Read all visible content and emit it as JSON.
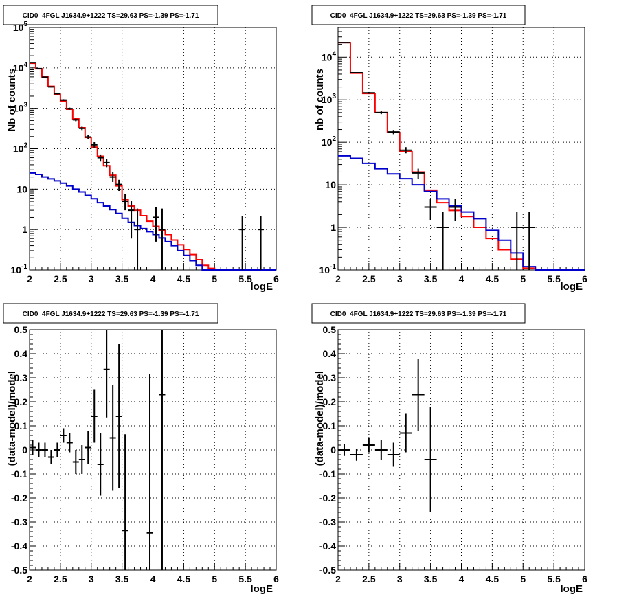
{
  "chart_data": [
    {
      "type": "line",
      "title": "CID0_4FGL J1634.9+1222 TS=29.63 PS=-1.39 PS=-1.71",
      "xlabel": "logE",
      "ylabel": "Nb of counts",
      "xlim": [
        2,
        6
      ],
      "ylim": [
        0.1,
        100000
      ],
      "yscale": "log",
      "grid": true,
      "x_ticks": [
        "2",
        "2.5",
        "3",
        "3.5",
        "4",
        "4.5",
        "5",
        "5.5",
        "6"
      ],
      "y_ticks": [
        "10^{-1}",
        "1",
        "10",
        "10^{2}",
        "10^{3}",
        "10^{4}",
        "10^{5}"
      ],
      "series": [
        {
          "color": "#ff0000",
          "style": "step",
          "bin_edges": [
            2,
            2.1,
            2.2,
            2.3,
            2.4,
            2.5,
            2.6,
            2.7,
            2.8,
            2.9,
            3.0,
            3.1,
            3.2,
            3.3,
            3.4,
            3.5,
            3.6,
            3.7,
            3.8,
            3.9,
            4.0,
            4.1,
            4.2,
            4.3,
            4.4,
            4.5,
            4.6,
            4.7,
            4.8,
            4.9,
            5.0,
            6.0
          ],
          "values": [
            13000,
            9500,
            6000,
            3500,
            2200,
            1500,
            950,
            550,
            330,
            190,
            110,
            65,
            38,
            22,
            12,
            5.5,
            3.8,
            3.0,
            2.2,
            1.6,
            1.2,
            0.95,
            0.75,
            0.55,
            0.42,
            0.32,
            0.24,
            0.18,
            0.13,
            0.11,
            0.1
          ]
        },
        {
          "color": "#0000cc",
          "style": "step",
          "bin_edges": [
            2,
            2.1,
            2.2,
            2.3,
            2.4,
            2.5,
            2.6,
            2.7,
            2.8,
            2.9,
            3.0,
            3.1,
            3.2,
            3.3,
            3.4,
            3.5,
            3.6,
            3.7,
            3.8,
            3.9,
            4.0,
            4.1,
            4.2,
            4.3,
            4.4,
            4.5,
            4.6,
            4.7,
            4.8,
            4.9,
            5.0,
            6.0
          ],
          "values": [
            25,
            23,
            20,
            18,
            16,
            14,
            12,
            10,
            8.5,
            7,
            5.8,
            4.6,
            3.8,
            3.1,
            2.5,
            1.9,
            1.5,
            1.25,
            1.05,
            0.88,
            0.75,
            0.62,
            0.5,
            0.4,
            0.3,
            0.23,
            0.17,
            0.13,
            0.1,
            0.1,
            0.1
          ]
        },
        {
          "color": "#000000",
          "style": "errorbar",
          "points": [
            {
              "x": 2.05,
              "y": 13500,
              "xerr": 0.05,
              "ylo": 13300,
              "yhi": 13700
            },
            {
              "x": 2.15,
              "y": 9600,
              "xerr": 0.05,
              "ylo": 9400,
              "yhi": 9800
            },
            {
              "x": 2.25,
              "y": 5900,
              "xerr": 0.05,
              "ylo": 5750,
              "yhi": 6050
            },
            {
              "x": 2.35,
              "y": 3400,
              "xerr": 0.05,
              "ylo": 3300,
              "yhi": 3500
            },
            {
              "x": 2.45,
              "y": 2300,
              "xerr": 0.05,
              "ylo": 2200,
              "yhi": 2400
            },
            {
              "x": 2.55,
              "y": 1600,
              "xerr": 0.05,
              "ylo": 1520,
              "yhi": 1680
            },
            {
              "x": 2.65,
              "y": 980,
              "xerr": 0.05,
              "ylo": 920,
              "yhi": 1040
            },
            {
              "x": 2.75,
              "y": 520,
              "xerr": 0.05,
              "ylo": 480,
              "yhi": 560
            },
            {
              "x": 2.85,
              "y": 320,
              "xerr": 0.05,
              "ylo": 290,
              "yhi": 350
            },
            {
              "x": 2.95,
              "y": 195,
              "xerr": 0.05,
              "ylo": 170,
              "yhi": 220
            },
            {
              "x": 3.05,
              "y": 125,
              "xerr": 0.05,
              "ylo": 105,
              "yhi": 145
            },
            {
              "x": 3.15,
              "y": 60,
              "xerr": 0.05,
              "ylo": 48,
              "yhi": 72
            },
            {
              "x": 3.25,
              "y": 45,
              "xerr": 0.05,
              "ylo": 35,
              "yhi": 56
            },
            {
              "x": 3.35,
              "y": 20,
              "xerr": 0.05,
              "ylo": 15,
              "yhi": 26
            },
            {
              "x": 3.45,
              "y": 13,
              "xerr": 0.05,
              "ylo": 9,
              "yhi": 17
            },
            {
              "x": 3.55,
              "y": 5,
              "xerr": 0.05,
              "ylo": 3,
              "yhi": 7.5
            },
            {
              "x": 3.65,
              "y": 3,
              "xerr": 0.05,
              "ylo": 0.6,
              "yhi": 5
            },
            {
              "x": 3.75,
              "y": 1,
              "xerr": 0.05,
              "ylo": 0.1,
              "yhi": 3.3
            },
            {
              "x": 4.05,
              "y": 2,
              "xerr": 0.05,
              "ylo": 0.5,
              "yhi": 3.6
            },
            {
              "x": 4.15,
              "y": 1,
              "xerr": 0.05,
              "ylo": 0.1,
              "yhi": 3.3
            },
            {
              "x": 5.45,
              "y": 1,
              "xerr": 0.05,
              "ylo": 0.1,
              "yhi": 2.2
            },
            {
              "x": 5.75,
              "y": 1,
              "xerr": 0.05,
              "ylo": 0.1,
              "yhi": 2.2
            }
          ]
        }
      ]
    },
    {
      "type": "line",
      "title": "CID0_4FGL J1634.9+1222 TS=29.63 PS=-1.39 PS=-1.71",
      "xlabel": "logE",
      "ylabel": "nb of counts",
      "xlim": [
        2,
        6
      ],
      "ylim": [
        0.1,
        50000
      ],
      "yscale": "log",
      "grid": true,
      "x_ticks": [
        "2",
        "2.5",
        "3",
        "3.5",
        "4",
        "4.5",
        "5",
        "5.5",
        "6"
      ],
      "y_ticks": [
        "10^{-1}",
        "1",
        "10",
        "10^{2}",
        "10^{3}",
        "10^{4}"
      ],
      "series": [
        {
          "color": "#ff0000",
          "style": "step",
          "bin_edges": [
            2,
            2.2,
            2.4,
            2.6,
            2.8,
            3.0,
            3.2,
            3.4,
            3.6,
            3.8,
            4.0,
            4.2,
            4.4,
            4.6,
            4.8,
            5.0,
            5.2,
            6.0
          ],
          "values": [
            22000,
            4200,
            1400,
            500,
            170,
            60,
            20,
            7.5,
            3.8,
            2.5,
            1.8,
            1.0,
            0.55,
            0.3,
            0.18,
            0.11,
            0.1
          ]
        },
        {
          "color": "#0000cc",
          "style": "step",
          "bin_edges": [
            2,
            2.2,
            2.4,
            2.6,
            2.8,
            3.0,
            3.2,
            3.4,
            3.6,
            3.8,
            4.0,
            4.2,
            4.4,
            4.6,
            4.8,
            5.0,
            5.2,
            6.0
          ],
          "values": [
            48,
            42,
            32,
            24,
            18,
            14,
            10,
            7,
            4.7,
            3.2,
            2.3,
            1.6,
            0.85,
            0.5,
            0.25,
            0.12,
            0.1
          ]
        },
        {
          "color": "#000000",
          "style": "errorbar",
          "points": [
            {
              "x": 2.1,
              "y": 22000,
              "xerr": 0.1,
              "ylo": 21700,
              "yhi": 22300
            },
            {
              "x": 2.3,
              "y": 4300,
              "xerr": 0.1,
              "ylo": 4150,
              "yhi": 4450
            },
            {
              "x": 2.5,
              "y": 1450,
              "xerr": 0.1,
              "ylo": 1380,
              "yhi": 1520
            },
            {
              "x": 2.7,
              "y": 500,
              "xerr": 0.1,
              "ylo": 460,
              "yhi": 540
            },
            {
              "x": 2.9,
              "y": 175,
              "xerr": 0.1,
              "ylo": 155,
              "yhi": 195
            },
            {
              "x": 3.1,
              "y": 65,
              "xerr": 0.1,
              "ylo": 55,
              "yhi": 77
            },
            {
              "x": 3.3,
              "y": 19,
              "xerr": 0.1,
              "ylo": 14,
              "yhi": 24
            },
            {
              "x": 3.5,
              "y": 3,
              "xerr": 0.1,
              "ylo": 1.5,
              "yhi": 4.6
            },
            {
              "x": 3.7,
              "y": 1,
              "xerr": 0.1,
              "ylo": 0.1,
              "yhi": 2.3
            },
            {
              "x": 3.9,
              "y": 3,
              "xerr": 0.1,
              "ylo": 1.4,
              "yhi": 4.6
            },
            {
              "x": 4.9,
              "y": 1,
              "xerr": 0.1,
              "ylo": 0.1,
              "yhi": 2.3
            },
            {
              "x": 5.1,
              "y": 1,
              "xerr": 0.1,
              "ylo": 0.1,
              "yhi": 2.3
            }
          ]
        }
      ]
    },
    {
      "type": "scatter",
      "title": "CID0_4FGL J1634.9+1222 TS=29.63 PS=-1.39 PS=-1.71",
      "xlabel": "logE",
      "ylabel": "(data-model)/model",
      "xlim": [
        2,
        6
      ],
      "ylim": [
        -0.5,
        0.5
      ],
      "grid": true,
      "x_ticks": [
        "2",
        "2.5",
        "3",
        "3.5",
        "4",
        "4.5",
        "5",
        "5.5",
        "6"
      ],
      "y_ticks": [
        "-0.5",
        "-0.4",
        "-0.3",
        "-0.2",
        "-0.1",
        "0",
        "0.1",
        "0.2",
        "0.3",
        "0.4",
        "0.5"
      ],
      "series": [
        {
          "color": "#000000",
          "style": "errorbar",
          "points": [
            {
              "x": 2.05,
              "y": 0.01,
              "xerr": 0.05,
              "err": 0.03
            },
            {
              "x": 2.15,
              "y": 0.0,
              "xerr": 0.05,
              "err": 0.03
            },
            {
              "x": 2.25,
              "y": 0.0,
              "xerr": 0.05,
              "err": 0.03
            },
            {
              "x": 2.35,
              "y": -0.03,
              "xerr": 0.05,
              "err": 0.03
            },
            {
              "x": 2.45,
              "y": 0.0,
              "xerr": 0.05,
              "err": 0.03
            },
            {
              "x": 2.55,
              "y": 0.06,
              "xerr": 0.05,
              "err": 0.03
            },
            {
              "x": 2.65,
              "y": 0.03,
              "xerr": 0.05,
              "err": 0.04
            },
            {
              "x": 2.75,
              "y": -0.05,
              "xerr": 0.05,
              "err": 0.05
            },
            {
              "x": 2.85,
              "y": -0.04,
              "xerr": 0.05,
              "err": 0.06
            },
            {
              "x": 2.95,
              "y": 0.01,
              "xerr": 0.05,
              "err": 0.07
            },
            {
              "x": 3.05,
              "y": 0.14,
              "xerr": 0.05,
              "err": 0.11
            },
            {
              "x": 3.15,
              "y": -0.06,
              "xerr": 0.05,
              "err": 0.13
            },
            {
              "x": 3.25,
              "y": 0.335,
              "xerr": 0.05,
              "err": 0.2
            },
            {
              "x": 3.35,
              "y": 0.05,
              "xerr": 0.05,
              "err": 0.22
            },
            {
              "x": 3.45,
              "y": 0.14,
              "xerr": 0.05,
              "err": 0.3
            },
            {
              "x": 3.55,
              "y": -0.335,
              "xerr": 0.05,
              "err": 0.4
            },
            {
              "x": 3.95,
              "y": -0.345,
              "xerr": 0.05,
              "err": 0.66
            },
            {
              "x": 4.15,
              "y": 0.23,
              "xerr": 0.05,
              "err": 0.8
            }
          ]
        }
      ]
    },
    {
      "type": "scatter",
      "title": "CID0_4FGL J1634.9+1222 TS=29.63 PS=-1.39 PS=-1.71",
      "xlabel": "logE",
      "ylabel": "(data-model)/model",
      "xlim": [
        2,
        6
      ],
      "ylim": [
        -0.5,
        0.5
      ],
      "grid": true,
      "x_ticks": [
        "2",
        "2.5",
        "3",
        "3.5",
        "4",
        "4.5",
        "5",
        "5.5",
        "6"
      ],
      "y_ticks": [
        "-0.5",
        "-0.4",
        "-0.3",
        "-0.2",
        "-0.1",
        "0",
        "0.1",
        "0.2",
        "0.3",
        "0.4",
        "0.5"
      ],
      "series": [
        {
          "color": "#000000",
          "style": "errorbar",
          "points": [
            {
              "x": 2.1,
              "y": 0.0,
              "xerr": 0.1,
              "err": 0.025
            },
            {
              "x": 2.3,
              "y": -0.02,
              "xerr": 0.1,
              "err": 0.025
            },
            {
              "x": 2.5,
              "y": 0.02,
              "xerr": 0.1,
              "err": 0.03
            },
            {
              "x": 2.7,
              "y": 0.0,
              "xerr": 0.1,
              "err": 0.04
            },
            {
              "x": 2.9,
              "y": -0.02,
              "xerr": 0.1,
              "err": 0.05
            },
            {
              "x": 3.1,
              "y": 0.07,
              "xerr": 0.1,
              "err": 0.08
            },
            {
              "x": 3.3,
              "y": 0.23,
              "xerr": 0.1,
              "err": 0.15
            },
            {
              "x": 3.5,
              "y": -0.04,
              "xerr": 0.1,
              "err": 0.22
            }
          ]
        }
      ]
    }
  ]
}
